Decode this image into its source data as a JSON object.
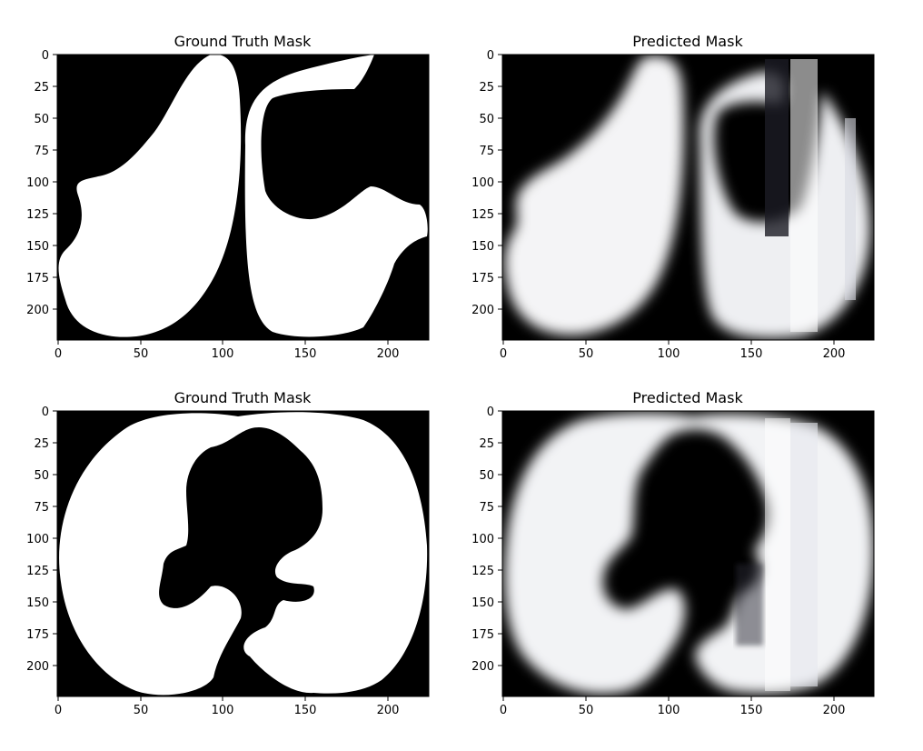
{
  "figure": {
    "background": "#ffffff",
    "mask_colormap": [
      "#000000",
      "#ffffff"
    ],
    "panels": [
      {
        "title": "Ground Truth Mask",
        "kind": "ground-truth",
        "xticks": [
          "0",
          "50",
          "100",
          "150",
          "200"
        ],
        "yticks": [
          "0",
          "25",
          "50",
          "75",
          "100",
          "125",
          "150",
          "175",
          "200"
        ],
        "xlim": [
          0,
          223
        ],
        "ylim": [
          223,
          0
        ]
      },
      {
        "title": "Predicted Mask",
        "kind": "prediction",
        "xticks": [
          "0",
          "50",
          "100",
          "150",
          "200"
        ],
        "yticks": [
          "0",
          "25",
          "50",
          "75",
          "100",
          "125",
          "150",
          "175",
          "200"
        ],
        "xlim": [
          0,
          223
        ],
        "ylim": [
          223,
          0
        ]
      },
      {
        "title": "Ground Truth Mask",
        "kind": "ground-truth",
        "xticks": [
          "0",
          "50",
          "100",
          "150",
          "200"
        ],
        "yticks": [
          "0",
          "25",
          "50",
          "75",
          "100",
          "125",
          "150",
          "175",
          "200"
        ],
        "xlim": [
          0,
          223
        ],
        "ylim": [
          223,
          0
        ]
      },
      {
        "title": "Predicted Mask",
        "kind": "prediction",
        "xticks": [
          "0",
          "50",
          "100",
          "150",
          "200"
        ],
        "yticks": [
          "0",
          "25",
          "50",
          "75",
          "100",
          "125",
          "150",
          "175",
          "200"
        ],
        "xlim": [
          0,
          223
        ],
        "ylim": [
          223,
          0
        ]
      }
    ]
  }
}
